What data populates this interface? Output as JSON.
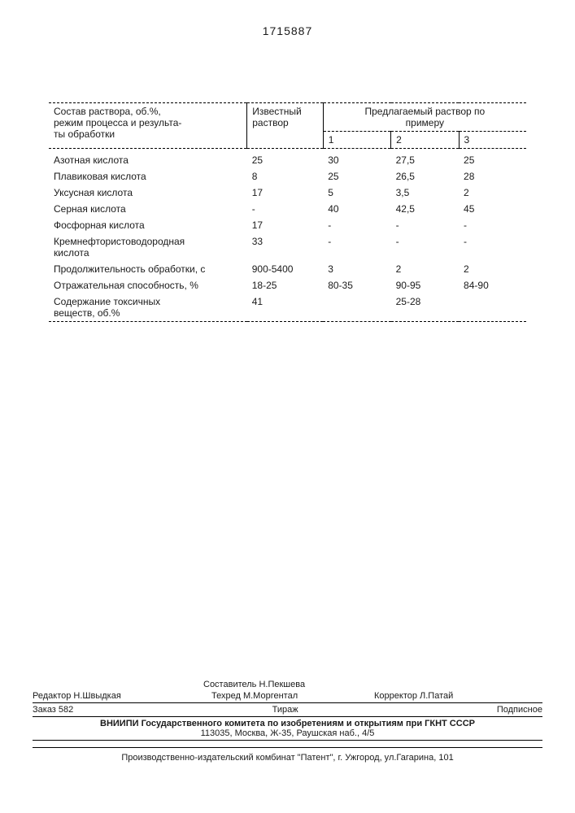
{
  "document_number": "1715887",
  "table": {
    "header": {
      "param_label": "Состав раствора, об.%,\nрежим процесса и результа-\nты обработки",
      "known_label": "Известный\nраствор",
      "proposed_label": "Предлагаемый раствор по\nпримеру",
      "ex_labels": [
        "1",
        "2",
        "3"
      ]
    },
    "rows": [
      {
        "label": "Азотная кислота",
        "known": "25",
        "v1": "30",
        "v2": "27,5",
        "v3": "25"
      },
      {
        "label": "Плавиковая кислота",
        "known": "8",
        "v1": "25",
        "v2": "26,5",
        "v3": "28"
      },
      {
        "label": "Уксусная кислота",
        "known": "17",
        "v1": "5",
        "v2": "3,5",
        "v3": "2"
      },
      {
        "label": "Серная кислота",
        "known": "-",
        "v1": "40",
        "v2": "42,5",
        "v3": "45"
      },
      {
        "label": "Фосфорная кислота",
        "known": "17",
        "v1": "-",
        "v2": "-",
        "v3": "-"
      },
      {
        "label": "Кремнефтористоводородная\nкислота",
        "known": "33",
        "v1": "-",
        "v2": "-",
        "v3": "-"
      },
      {
        "label": "Продолжительность обработки, с",
        "known": "900-5400",
        "v1": "3",
        "v2": "2",
        "v3": "2"
      },
      {
        "label": "Отражательная способность, %",
        "known": "18-25",
        "v1": "80-35",
        "v2": "90-95",
        "v3": "84-90"
      },
      {
        "label": "Содержание токсичных\nвеществ, об.%",
        "known": "41",
        "v1": "",
        "v2": "25-28",
        "v3": ""
      }
    ]
  },
  "footer": {
    "editor_label": "Редактор",
    "editor": "Н.Швыдкая",
    "compiler_label": "Составитель",
    "compiler": "Н.Пекшева",
    "techred_label": "Техред",
    "techred": "М.Моргентал",
    "corrector_label": "Корректор",
    "corrector": "Л.Патай",
    "order_label": "Заказ",
    "order": "582",
    "circulation_label": "Тираж",
    "subscription_label": "Подписное",
    "org_line1": "ВНИИПИ Государственного комитета по изобретениям и открытиям при ГКНТ СССР",
    "org_line2": "113035, Москва, Ж-35, Раушская наб., 4/5",
    "printer": "Производственно-издательский комбинат \"Патент\", г. Ужгород, ул.Гагарина, 101"
  }
}
